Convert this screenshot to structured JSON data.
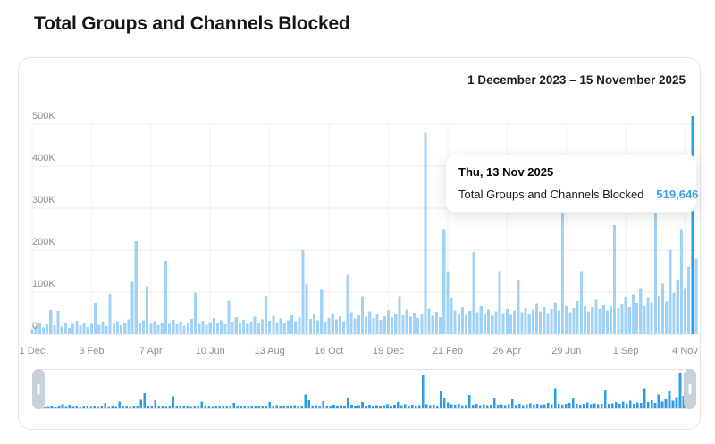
{
  "page": {
    "title": "Total Groups and Channels Blocked"
  },
  "header": {
    "date_range_label": "1 December 2023 – 15 November 2025"
  },
  "tooltip": {
    "date": "Thu, 13 Nov 2025",
    "label": "Total Groups and Channels Blocked",
    "value": "519,646"
  },
  "colors": {
    "bar": "#9fd2f6",
    "bar_selected": "#2f9ce8",
    "minimap_bar": "#2f9ce8",
    "grid_line": "#ececec",
    "vertical_grid_line": "#f2f2f2",
    "axis_text": "#8e8e93",
    "value_text": "#3aa0e9",
    "handle": "#c7d0db",
    "handle_slot": "#ffffff",
    "brush_frame": "#dde3ea"
  },
  "chart_data": {
    "type": "bar",
    "title": "Total Groups and Channels Blocked",
    "x_start": "2023-12-01",
    "x_end": "2025-11-15",
    "x_total_days": 716,
    "xlabel": "",
    "ylabel": "",
    "ylim": [
      0,
      500000
    ],
    "grid": true,
    "legend_position": "none",
    "y_ticks": [
      {
        "label": "0",
        "value": 0
      },
      {
        "label": "100K",
        "value": 100000
      },
      {
        "label": "200K",
        "value": 200000
      },
      {
        "label": "300K",
        "value": 300000
      },
      {
        "label": "400K",
        "value": 400000
      },
      {
        "label": "500K",
        "value": 500000
      }
    ],
    "x_ticks": [
      {
        "label": "1 Dec",
        "day": 0
      },
      {
        "label": "3 Feb",
        "day": 64
      },
      {
        "label": "7 Apr",
        "day": 128
      },
      {
        "label": "10 Jun",
        "day": 192
      },
      {
        "label": "13 Aug",
        "day": 256
      },
      {
        "label": "16 Oct",
        "day": 320
      },
      {
        "label": "19 Dec",
        "day": 384
      },
      {
        "label": "21 Feb",
        "day": 448
      },
      {
        "label": "26 Apr",
        "day": 512
      },
      {
        "label": "29 Jun",
        "day": 576
      },
      {
        "label": "1 Sep",
        "day": 640
      },
      {
        "label": "4 Nov",
        "day": 704
      }
    ],
    "highlighted_point": {
      "date": "2025-11-13",
      "day": 712,
      "value": 519646
    },
    "series": [
      {
        "name": "Total Groups and Channels Blocked",
        "points_format": "[day_offset_from_2023-12-01, value] (values estimated from gridlines except highlighted point)",
        "points": [
          [
            0,
            12000
          ],
          [
            4,
            19000
          ],
          [
            8,
            26000
          ],
          [
            12,
            16000
          ],
          [
            16,
            23000
          ],
          [
            20,
            57000
          ],
          [
            24,
            21000
          ],
          [
            28,
            55000
          ],
          [
            32,
            18000
          ],
          [
            36,
            27000
          ],
          [
            40,
            15000
          ],
          [
            44,
            24000
          ],
          [
            48,
            32000
          ],
          [
            52,
            20000
          ],
          [
            56,
            28000
          ],
          [
            60,
            17000
          ],
          [
            64,
            25000
          ],
          [
            68,
            75000
          ],
          [
            72,
            22000
          ],
          [
            76,
            30000
          ],
          [
            80,
            19000
          ],
          [
            84,
            96000
          ],
          [
            88,
            24000
          ],
          [
            92,
            31000
          ],
          [
            96,
            21000
          ],
          [
            100,
            28000
          ],
          [
            104,
            35000
          ],
          [
            108,
            125000
          ],
          [
            112,
            221000
          ],
          [
            116,
            26000
          ],
          [
            120,
            33000
          ],
          [
            124,
            114000
          ],
          [
            128,
            24000
          ],
          [
            132,
            31000
          ],
          [
            136,
            21000
          ],
          [
            140,
            28000
          ],
          [
            144,
            174000
          ],
          [
            148,
            25000
          ],
          [
            152,
            34000
          ],
          [
            156,
            23000
          ],
          [
            160,
            30000
          ],
          [
            164,
            20000
          ],
          [
            168,
            27000
          ],
          [
            172,
            36000
          ],
          [
            176,
            99000
          ],
          [
            180,
            25000
          ],
          [
            184,
            32000
          ],
          [
            188,
            22000
          ],
          [
            192,
            29000
          ],
          [
            196,
            38000
          ],
          [
            200,
            26000
          ],
          [
            204,
            33000
          ],
          [
            208,
            23000
          ],
          [
            212,
            80000
          ],
          [
            216,
            30000
          ],
          [
            220,
            40000
          ],
          [
            224,
            27000
          ],
          [
            228,
            34000
          ],
          [
            232,
            24000
          ],
          [
            236,
            31000
          ],
          [
            240,
            42000
          ],
          [
            244,
            28000
          ],
          [
            248,
            35000
          ],
          [
            252,
            92000
          ],
          [
            256,
            32000
          ],
          [
            260,
            44000
          ],
          [
            264,
            29000
          ],
          [
            268,
            37000
          ],
          [
            272,
            26000
          ],
          [
            276,
            33000
          ],
          [
            280,
            45000
          ],
          [
            284,
            31000
          ],
          [
            288,
            39000
          ],
          [
            292,
            200000
          ],
          [
            296,
            120000
          ],
          [
            300,
            36000
          ],
          [
            304,
            47000
          ],
          [
            308,
            33000
          ],
          [
            312,
            105000
          ],
          [
            316,
            30000
          ],
          [
            320,
            38000
          ],
          [
            324,
            50000
          ],
          [
            328,
            35000
          ],
          [
            332,
            43000
          ],
          [
            336,
            31000
          ],
          [
            340,
            142000
          ],
          [
            344,
            52000
          ],
          [
            348,
            37000
          ],
          [
            352,
            45000
          ],
          [
            356,
            90000
          ],
          [
            360,
            41000
          ],
          [
            364,
            54000
          ],
          [
            368,
            38000
          ],
          [
            372,
            47000
          ],
          [
            376,
            34000
          ],
          [
            380,
            43000
          ],
          [
            384,
            56000
          ],
          [
            388,
            40000
          ],
          [
            392,
            49000
          ],
          [
            396,
            90000
          ],
          [
            400,
            45000
          ],
          [
            404,
            58000
          ],
          [
            408,
            42000
          ],
          [
            412,
            51000
          ],
          [
            416,
            38000
          ],
          [
            420,
            47000
          ],
          [
            424,
            480000
          ],
          [
            428,
            61000
          ],
          [
            432,
            44000
          ],
          [
            436,
            53000
          ],
          [
            440,
            40000
          ],
          [
            444,
            250000
          ],
          [
            448,
            150000
          ],
          [
            452,
            85000
          ],
          [
            456,
            56000
          ],
          [
            460,
            49000
          ],
          [
            464,
            64000
          ],
          [
            468,
            46000
          ],
          [
            472,
            55000
          ],
          [
            476,
            196000
          ],
          [
            480,
            52000
          ],
          [
            484,
            67000
          ],
          [
            488,
            48000
          ],
          [
            492,
            58000
          ],
          [
            496,
            44000
          ],
          [
            500,
            54000
          ],
          [
            504,
            150000
          ],
          [
            508,
            50000
          ],
          [
            512,
            60000
          ],
          [
            516,
            46000
          ],
          [
            520,
            56000
          ],
          [
            524,
            130000
          ],
          [
            528,
            52000
          ],
          [
            532,
            62000
          ],
          [
            536,
            48000
          ],
          [
            540,
            58000
          ],
          [
            544,
            73000
          ],
          [
            548,
            54000
          ],
          [
            552,
            64000
          ],
          [
            556,
            50000
          ],
          [
            560,
            60000
          ],
          [
            564,
            76000
          ],
          [
            568,
            56000
          ],
          [
            572,
            290000
          ],
          [
            576,
            66000
          ],
          [
            580,
            52000
          ],
          [
            584,
            62000
          ],
          [
            588,
            79000
          ],
          [
            592,
            150000
          ],
          [
            596,
            68000
          ],
          [
            600,
            54000
          ],
          [
            604,
            64000
          ],
          [
            608,
            82000
          ],
          [
            612,
            60000
          ],
          [
            616,
            70000
          ],
          [
            620,
            56000
          ],
          [
            624,
            66000
          ],
          [
            628,
            260000
          ],
          [
            632,
            62000
          ],
          [
            636,
            72000
          ],
          [
            640,
            88000
          ],
          [
            644,
            64000
          ],
          [
            648,
            95000
          ],
          [
            652,
            74000
          ],
          [
            656,
            110000
          ],
          [
            660,
            66000
          ],
          [
            664,
            86000
          ],
          [
            668,
            76000
          ],
          [
            672,
            290000
          ],
          [
            676,
            92000
          ],
          [
            680,
            120000
          ],
          [
            684,
            78000
          ],
          [
            688,
            200000
          ],
          [
            692,
            98000
          ],
          [
            696,
            130000
          ],
          [
            700,
            250000
          ],
          [
            704,
            110000
          ],
          [
            708,
            160000
          ],
          [
            712,
            519646
          ],
          [
            716,
            180000
          ]
        ]
      }
    ]
  }
}
